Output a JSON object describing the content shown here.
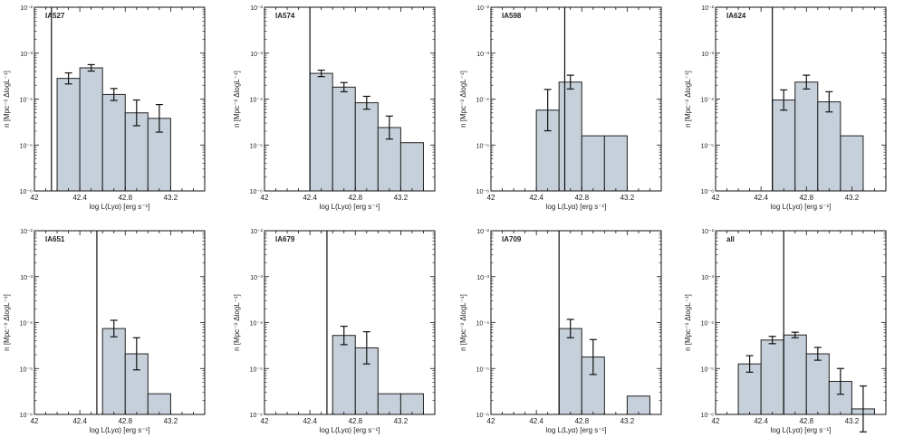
{
  "figure": {
    "bar_fill": "#c5d0da",
    "bar_stroke": "#222222",
    "cutoff_color": "#111111"
  },
  "chart_data": [
    {
      "type": "bar",
      "label": "IA527",
      "xlabel": "log L(Lyα) [erg s⁻¹]",
      "ylabel": "n [Mpc⁻³ ΔlogL⁻¹]",
      "xlim": [
        42,
        43.5
      ],
      "ylim": [
        -6,
        -2
      ],
      "yscale": "log",
      "xticks": [
        42,
        42.4,
        42.8,
        43.2
      ],
      "xtick_labels": [
        "42",
        "42.4",
        "42.8",
        "43.2"
      ],
      "ytick_labels": [
        "10⁻⁶",
        "10⁻⁵",
        "10⁻⁴",
        "10⁻³",
        "10⁻²"
      ],
      "cutoff_x": 42.15,
      "bin_edges": [
        42.2,
        42.4,
        42.6,
        42.8,
        43.0,
        43.2
      ],
      "values": [
        -3.55,
        -3.32,
        -3.9,
        -4.3,
        -4.42
      ],
      "err_low": [
        0.12,
        0.07,
        0.13,
        0.28,
        0.3
      ],
      "err_high": [
        0.12,
        0.07,
        0.13,
        0.28,
        0.3
      ]
    },
    {
      "type": "bar",
      "label": "IA574",
      "xlabel": "log L(Lyα) [erg s⁻¹]",
      "ylabel": "n [Mpc⁻³ ΔlogL⁻¹]",
      "xlim": [
        42,
        43.5
      ],
      "ylim": [
        -6,
        -2
      ],
      "yscale": "log",
      "xticks": [
        42,
        42.4,
        42.8,
        43.2
      ],
      "xtick_labels": [
        "42",
        "42.4",
        "42.8",
        "43.2"
      ],
      "ytick_labels": [
        "10⁻⁶",
        "10⁻⁵",
        "10⁻⁴",
        "10⁻³",
        "10⁻²"
      ],
      "cutoff_x": 42.4,
      "bin_edges": [
        42.4,
        42.6,
        42.8,
        43.0,
        43.2,
        43.4
      ],
      "values": [
        -3.44,
        -3.74,
        -4.08,
        -4.62,
        -4.95
      ],
      "err_low": [
        0.07,
        0.1,
        0.14,
        0.25,
        0
      ],
      "err_high": [
        0.07,
        0.1,
        0.14,
        0.25,
        0
      ]
    },
    {
      "type": "bar",
      "label": "IA598",
      "xlabel": "log L(Lyα) [erg s⁻¹]",
      "ylabel": "n [Mpc⁻³ ΔlogL⁻¹]",
      "xlim": [
        42,
        43.5
      ],
      "ylim": [
        -6,
        -2
      ],
      "yscale": "log",
      "xticks": [
        42,
        42.4,
        42.8,
        43.2
      ],
      "xtick_labels": [
        "42",
        "42.4",
        "42.8",
        "43.2"
      ],
      "ytick_labels": [
        "10⁻⁶",
        "10⁻⁵",
        "10⁻⁴",
        "10⁻³",
        "10⁻²"
      ],
      "cutoff_x": 42.65,
      "bin_edges": [
        42.4,
        42.6,
        42.8,
        43.0,
        43.2
      ],
      "values": [
        -4.24,
        -3.63,
        -4.8,
        -4.8
      ],
      "err_low": [
        0.45,
        0.15,
        0,
        0
      ],
      "err_high": [
        0.45,
        0.15,
        0,
        0
      ]
    },
    {
      "type": "bar",
      "label": "IA624",
      "xlabel": "log L(Lyα) [erg s⁻¹]",
      "ylabel": "n [Mpc⁻³ ΔlogL⁻¹]",
      "xlim": [
        42,
        43.5
      ],
      "ylim": [
        -6,
        -2
      ],
      "yscale": "log",
      "xticks": [
        42,
        42.4,
        42.8,
        43.2
      ],
      "xtick_labels": [
        "42",
        "42.4",
        "42.8",
        "43.2"
      ],
      "ytick_labels": [
        "10⁻⁶",
        "10⁻⁵",
        "10⁻⁴",
        "10⁻³",
        "10⁻²"
      ],
      "cutoff_x": 42.5,
      "bin_edges": [
        42.5,
        42.7,
        42.9,
        43.1,
        43.3
      ],
      "values": [
        -4.02,
        -3.63,
        -4.06,
        -4.8
      ],
      "err_low": [
        0.22,
        0.15,
        0.22,
        0
      ],
      "err_high": [
        0.22,
        0.15,
        0.22,
        0
      ]
    },
    {
      "type": "bar",
      "label": "IA651",
      "xlabel": "log L(Lyα) [erg s⁻¹]",
      "ylabel": "n [Mpc⁻³ ΔlogL⁻¹]",
      "xlim": [
        42,
        43.5
      ],
      "ylim": [
        -6,
        -2
      ],
      "yscale": "log",
      "xticks": [
        42,
        42.4,
        42.8,
        43.2
      ],
      "xtick_labels": [
        "42",
        "42.4",
        "42.8",
        "43.2"
      ],
      "ytick_labels": [
        "10⁻⁶",
        "10⁻⁵",
        "10⁻⁴",
        "10⁻³",
        "10⁻²"
      ],
      "cutoff_x": 42.55,
      "bin_edges": [
        42.6,
        42.8,
        43.0,
        43.2
      ],
      "values": [
        -4.13,
        -4.68,
        -5.55
      ],
      "err_low": [
        0.18,
        0.35,
        0
      ],
      "err_high": [
        0.18,
        0.35,
        0
      ]
    },
    {
      "type": "bar",
      "label": "IA679",
      "xlabel": "log L(Lyα) [erg s⁻¹]",
      "ylabel": "n [Mpc⁻³ ΔlogL⁻¹]",
      "xlim": [
        42,
        43.5
      ],
      "ylim": [
        -6,
        -2
      ],
      "yscale": "log",
      "xticks": [
        42,
        42.4,
        42.8,
        43.2
      ],
      "xtick_labels": [
        "42",
        "42.4",
        "42.8",
        "43.2"
      ],
      "ytick_labels": [
        "10⁻⁶",
        "10⁻⁵",
        "10⁻⁴",
        "10⁻³",
        "10⁻²"
      ],
      "cutoff_x": 42.55,
      "bin_edges": [
        42.6,
        42.8,
        43.0,
        43.2,
        43.4
      ],
      "values": [
        -4.28,
        -4.55,
        -5.55,
        -5.55
      ],
      "err_low": [
        0.2,
        0.35,
        0,
        0
      ],
      "err_high": [
        0.2,
        0.35,
        0,
        0
      ]
    },
    {
      "type": "bar",
      "label": "IA709",
      "xlabel": "log L(Lyα) [erg s⁻¹]",
      "ylabel": "n [Mpc⁻³ ΔlogL⁻¹]",
      "xlim": [
        42,
        43.5
      ],
      "ylim": [
        -6,
        -2
      ],
      "yscale": "log",
      "xticks": [
        42,
        42.4,
        42.8,
        43.2
      ],
      "xtick_labels": [
        "42",
        "42.4",
        "42.8",
        "43.2"
      ],
      "ytick_labels": [
        "10⁻⁶",
        "10⁻⁵",
        "10⁻⁴",
        "10⁻³",
        "10⁻²"
      ],
      "cutoff_x": 42.6,
      "bin_edges": [
        42.6,
        42.8,
        43.0,
        43.2,
        43.4
      ],
      "values": [
        -4.13,
        -4.75,
        null,
        -5.6
      ],
      "err_low": [
        0.2,
        0.38,
        0,
        0
      ],
      "err_high": [
        0.2,
        0.38,
        0,
        0
      ]
    },
    {
      "type": "bar",
      "label": "all",
      "xlabel": "log L(Lyα) [erg s⁻¹]",
      "ylabel": "n [Mpc⁻³ ΔlogL⁻¹]",
      "xlim": [
        42,
        43.5
      ],
      "ylim": [
        -6,
        -2
      ],
      "yscale": "log",
      "xticks": [
        42,
        42.4,
        42.8,
        43.2
      ],
      "xtick_labels": [
        "42",
        "42.4",
        "42.8",
        "43.2"
      ],
      "ytick_labels": [
        "10⁻⁶",
        "10⁻⁵",
        "10⁻⁴",
        "10⁻³",
        "10⁻²"
      ],
      "cutoff_x": 42.6,
      "bin_edges": [
        42.2,
        42.4,
        42.6,
        42.8,
        43.0,
        43.2,
        43.4
      ],
      "values": [
        -4.9,
        -4.38,
        -4.27,
        -4.68,
        -5.28,
        -5.88
      ],
      "err_low": [
        0.18,
        0.08,
        0.06,
        0.14,
        0.28,
        0.5
      ],
      "err_high": [
        0.18,
        0.08,
        0.06,
        0.14,
        0.28,
        0.5
      ]
    }
  ]
}
